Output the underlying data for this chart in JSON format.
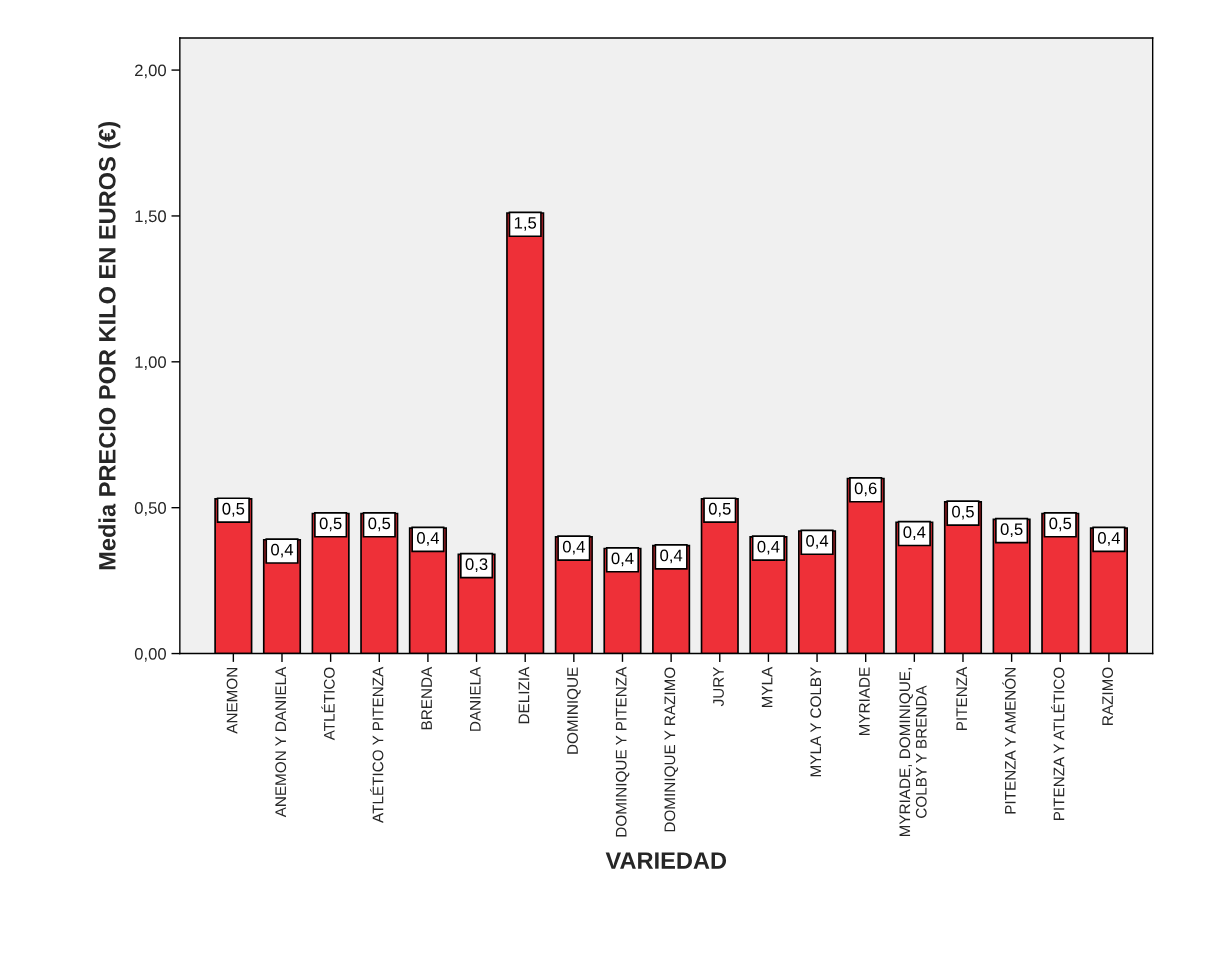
{
  "chart_data": {
    "type": "bar",
    "xlabel": "VARIEDAD",
    "ylabel": "Media PRECIO POR KILO EN EUROS (€)",
    "categories": [
      "ANEMON",
      "ANEMON Y DANIELA",
      "ATLÉTICO",
      "ATLÉTICO Y PITENZA",
      "BRENDA",
      "DANIELA",
      "DELIZIA",
      "DOMINIQUE",
      "DOMINIQUE Y PITENZA",
      "DOMINIQUE Y RAZIMO",
      "JURY",
      "MYLA",
      "MYLA Y COLBY",
      "MYRIADE",
      "MYRIADE, DOMINIQUE,\nCOLBY Y BRENDA",
      "PITENZA",
      "PITENZA Y AMENÓN",
      "PITENZA Y ATLÉTICO",
      "RAZIMO"
    ],
    "values": [
      0.53,
      0.39,
      0.48,
      0.48,
      0.43,
      0.34,
      1.51,
      0.4,
      0.36,
      0.37,
      0.53,
      0.4,
      0.42,
      0.6,
      0.45,
      0.52,
      0.46,
      0.48,
      0.43
    ],
    "value_labels": [
      "0,5",
      "0,4",
      "0,5",
      "0,5",
      "0,4",
      "0,3",
      "1,5",
      "0,4",
      "0,4",
      "0,4",
      "0,5",
      "0,4",
      "0,4",
      "0,6",
      "0,4",
      "0,5",
      "0,5",
      "0,5",
      "0,4"
    ],
    "color": "#ee3038",
    "ylim": [
      0,
      2.11
    ],
    "yticks": [
      {
        "value": 0,
        "label": "0,00"
      },
      {
        "value": 0.5,
        "label": "0,50"
      },
      {
        "value": 1,
        "label": "1,00"
      },
      {
        "value": 1.5,
        "label": "1,50"
      },
      {
        "value": 2,
        "label": "2,00"
      }
    ],
    "grid": false
  }
}
